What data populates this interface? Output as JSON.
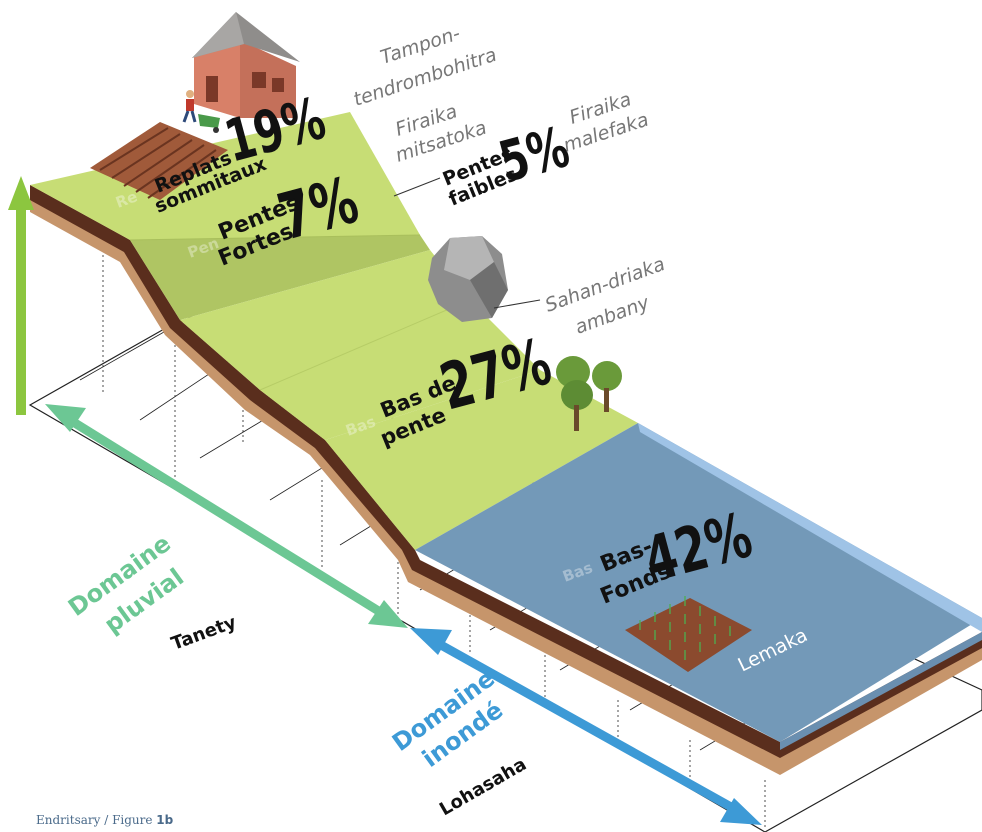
{
  "zones": {
    "replats": {
      "label_1": "Replats",
      "label_2": "sommitaux",
      "percent": "19%",
      "malagasy_1": "Tampon-",
      "malagasy_2": "tendrombohitra",
      "ghost": "Re"
    },
    "pentes_fortes": {
      "label_1": "Pentes",
      "label_2": "Fortes",
      "percent": "7%",
      "malagasy_1": "Firaika",
      "malagasy_2": "mitsatoka",
      "ghost": "Pen"
    },
    "pentes_faibles": {
      "label_1": "Pentes",
      "label_2": "faibles",
      "percent": "5%",
      "malagasy_1": "Firaika",
      "malagasy_2": "malefaka"
    },
    "bas_de_pente": {
      "label_1": "Bas de",
      "label_2": "pente",
      "percent": "27%",
      "malagasy_1": "Sahan-driaka",
      "malagasy_2": "ambany",
      "ghost": "Bas"
    },
    "bas_fonds": {
      "label_1": "Bas-",
      "label_2": "Fonds",
      "percent": "42%",
      "malagasy": "Lemaka",
      "ghost": "Bas"
    }
  },
  "domains": {
    "pluvial": {
      "line_1": "Domaine",
      "line_2": "pluvial",
      "local": "Tanety",
      "color": "#6cc794"
    },
    "inonde": {
      "line_1": "Domaine",
      "line_2": "inondé",
      "local": "Lohasaha",
      "color": "#3d9ad6"
    }
  },
  "credit": {
    "author": "Endritsary / Figure ",
    "figure": "1b"
  },
  "colors": {
    "terrain": "#c7dd75",
    "terrain_dark": "#afc563",
    "water": "#7399b8",
    "water_edge": "#9fc3e6",
    "soil_dark": "#5a2e1d",
    "soil_light": "#c6956b",
    "green_arrow": "#8cc63f"
  }
}
